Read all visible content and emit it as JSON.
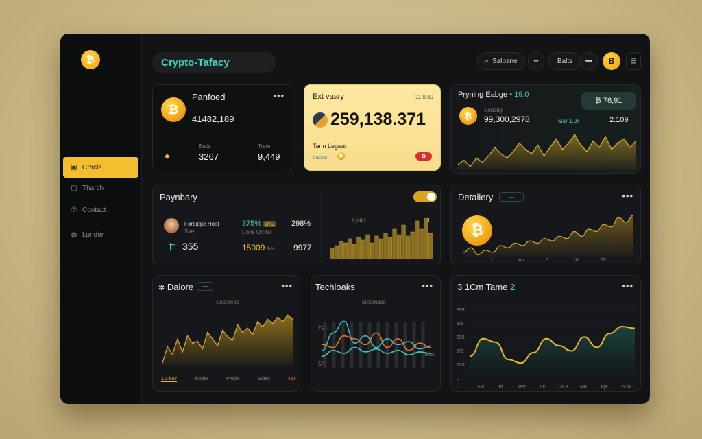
{
  "app": {
    "title": "Crypto-Tafacy"
  },
  "header": {
    "search_label": "Salbane",
    "more_label": "••",
    "balance_label": "Balts",
    "menu_label": "•••",
    "avatar_letter": "B",
    "square_label": "▤"
  },
  "sidebar": {
    "logo_letter": "₿",
    "items": [
      {
        "label": "Cracls",
        "icon": "wallet-icon",
        "active": true
      },
      {
        "label": "Tharch",
        "icon": "image-icon",
        "active": false
      },
      {
        "label": "Contact",
        "icon": "phone-icon",
        "active": false
      },
      {
        "label": "Lunder",
        "icon": "globe-icon",
        "active": false
      }
    ]
  },
  "cards": {
    "portfolio": {
      "title": "Panfoed",
      "value": "41482,189",
      "stat1_label": "Batls",
      "stat1_value": "3267",
      "stat2_label": "Trefe",
      "stat2_value": "9,449",
      "coin": "₿",
      "pin_icon": "pin-icon"
    },
    "exchange": {
      "title": "Ext vaary",
      "corner": "11.0.89",
      "value": "259,138.371",
      "sub_label": "Tann Legeat",
      "sub_small": "bacas",
      "coin_small": "₿",
      "badge": "₿"
    },
    "pricing": {
      "title": "Pryning Eabge",
      "title_suffix": "• 19.0",
      "badge_value": "₿ 76,91",
      "value": "99,300,2978",
      "mid_label": "Mar 1,08",
      "right_value": "2.109",
      "sub_tiny": "Sondiig"
    },
    "payment": {
      "title": "Paynbary",
      "user_name": "Forbidge Hoat",
      "user_sub": "Sae",
      "count": "355",
      "pct1": "375%",
      "pct1_badge": "UIC",
      "pct1_sub": "Cons Orpler",
      "pct2": "298%",
      "val1": "15009",
      "val1_suffix": "bel",
      "val2": "9977",
      "chart_label": "Lyald",
      "chart_right": "1"
    },
    "delivery": {
      "title": "Detaliery",
      "tag": "—",
      "axis": [
        "1",
        "Ao",
        "5",
        "10",
        "15"
      ]
    },
    "dalore": {
      "title": "Dalore",
      "tag": "—",
      "legend_title": "Sosoreps",
      "legend": [
        {
          "label": "1.1 kay",
          "color": "#f3b42a"
        },
        {
          "label": "Noble",
          "color": "#8c8a80"
        },
        {
          "label": "Phaks",
          "color": "#8c8a80"
        },
        {
          "label": "Sider",
          "color": "#8c8a80"
        },
        {
          "label": "Kar",
          "color": "#e0762b"
        }
      ]
    },
    "techloaks": {
      "title": "Techloaks",
      "legend_title": "Meamass",
      "y_labels": [
        "795",
        "5/5"
      ],
      "corner_label": "Sleus"
    },
    "time": {
      "title": "3 1Cm Tame",
      "title_num": "2",
      "y_labels": [
        "395",
        "5/5",
        "295",
        "7/5",
        "120",
        "0"
      ],
      "x_labels": [
        "0",
        "SMI",
        "Jo",
        "Vep",
        "2J0",
        "2C8",
        "Mo",
        "Ayr",
        "2/10"
      ]
    }
  },
  "colors": {
    "accent_gold": "#f5be2e",
    "teal": "#3fd0c0",
    "orange": "#e8742a"
  },
  "chart_data": [
    {
      "type": "area",
      "series": [
        {
          "values": [
            12,
            14,
            11,
            15,
            13,
            16,
            20,
            17,
            15,
            18,
            22,
            19,
            17,
            21,
            16,
            20,
            24,
            19,
            22,
            26,
            21,
            18,
            23,
            20,
            25,
            19,
            22,
            24,
            20,
            23
          ]
        }
      ]
    },
    {
      "type": "bar",
      "series": [
        {
          "values": [
            8,
            10,
            13,
            12,
            15,
            11,
            16,
            14,
            18,
            12,
            17,
            15,
            19,
            16,
            22,
            18,
            25,
            17,
            20,
            28,
            22,
            30,
            19
          ]
        }
      ]
    },
    {
      "type": "area",
      "series": [
        {
          "values": [
            6,
            8,
            5,
            7,
            6,
            9,
            8,
            10,
            9,
            11,
            10,
            12,
            11,
            13,
            12,
            15,
            13,
            16,
            15,
            18,
            17,
            21,
            19,
            22
          ]
        }
      ]
    },
    {
      "type": "area",
      "series": [
        {
          "values": [
            20,
            35,
            28,
            42,
            30,
            45,
            38,
            40,
            33,
            48,
            42,
            36,
            50,
            44,
            41,
            55,
            48,
            52,
            46,
            58,
            53,
            60,
            56,
            62,
            58,
            64,
            60
          ]
        }
      ]
    },
    {
      "type": "line",
      "series": [
        {
          "values": [
            10,
            22,
            30,
            15,
            20,
            12,
            18,
            14,
            16,
            11,
            13
          ]
        },
        {
          "values": [
            14,
            12,
            20,
            18,
            14,
            22,
            12,
            18,
            10,
            15,
            12
          ]
        },
        {
          "values": [
            6,
            10,
            8,
            12,
            9,
            11,
            8,
            10,
            7,
            9,
            8
          ]
        }
      ]
    },
    {
      "type": "area",
      "series": [
        {
          "values": [
            130,
            230,
            210,
            110,
            90,
            150,
            230,
            190,
            160,
            240,
            180,
            260,
            300,
            290
          ]
        }
      ],
      "ylim": [
        0,
        395
      ]
    }
  ]
}
